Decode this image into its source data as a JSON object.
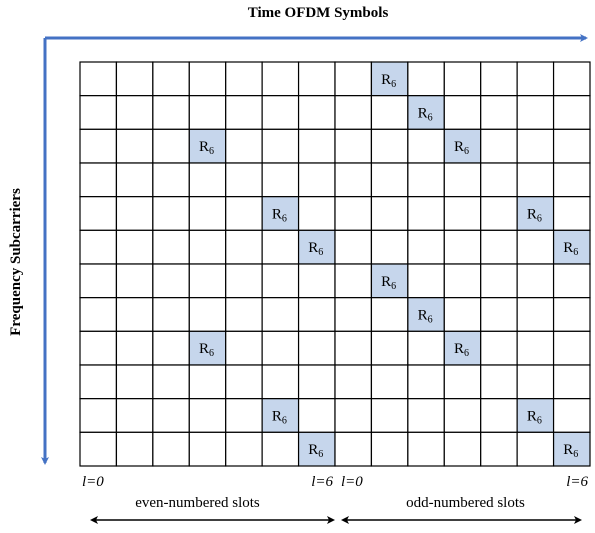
{
  "header": {
    "time_axis": "Time OFDM Symbols",
    "frequency_axis": "Frequency Subcarriers"
  },
  "grid": {
    "rows": [
      [
        null,
        null,
        null,
        null,
        null,
        null,
        null,
        null,
        {
          "main": "R",
          "sub": "6"
        },
        null,
        null,
        null,
        null,
        null
      ],
      [
        null,
        null,
        null,
        null,
        null,
        null,
        null,
        null,
        null,
        {
          "main": "R",
          "sub": "6"
        },
        null,
        null,
        null,
        null
      ],
      [
        null,
        null,
        null,
        {
          "main": "R",
          "sub": "6"
        },
        null,
        null,
        null,
        null,
        null,
        null,
        {
          "main": "R",
          "sub": "6"
        },
        null,
        null,
        null
      ],
      [
        null,
        null,
        null,
        null,
        null,
        null,
        null,
        null,
        null,
        null,
        null,
        null,
        null,
        null
      ],
      [
        null,
        null,
        null,
        null,
        null,
        {
          "main": "R",
          "sub": "6"
        },
        null,
        null,
        null,
        null,
        null,
        null,
        {
          "main": "R",
          "sub": "6"
        },
        null
      ],
      [
        null,
        null,
        null,
        null,
        null,
        null,
        {
          "main": "R",
          "sub": "6"
        },
        null,
        null,
        null,
        null,
        null,
        null,
        {
          "main": "R",
          "sub": "6"
        }
      ],
      [
        null,
        null,
        null,
        null,
        null,
        null,
        null,
        null,
        {
          "main": "R",
          "sub": "6"
        },
        null,
        null,
        null,
        null,
        null
      ],
      [
        null,
        null,
        null,
        null,
        null,
        null,
        null,
        null,
        null,
        {
          "main": "R",
          "sub": "6"
        },
        null,
        null,
        null,
        null
      ],
      [
        null,
        null,
        null,
        {
          "main": "R",
          "sub": "6"
        },
        null,
        null,
        null,
        null,
        null,
        null,
        {
          "main": "R",
          "sub": "6"
        },
        null,
        null,
        null
      ],
      [
        null,
        null,
        null,
        null,
        null,
        null,
        null,
        null,
        null,
        null,
        null,
        null,
        null,
        null
      ],
      [
        null,
        null,
        null,
        null,
        null,
        {
          "main": "R",
          "sub": "6"
        },
        null,
        null,
        null,
        null,
        null,
        null,
        {
          "main": "R",
          "sub": "6"
        },
        null
      ],
      [
        null,
        null,
        null,
        null,
        null,
        null,
        {
          "main": "R",
          "sub": "6"
        },
        null,
        null,
        null,
        null,
        null,
        null,
        {
          "main": "R",
          "sub": "6"
        }
      ]
    ]
  },
  "slots": [
    {
      "start": "l=0",
      "end": "l=6",
      "caption": "even-numbered slots"
    },
    {
      "start": "l=0",
      "end": "l=6",
      "caption": "odd-numbered slots"
    }
  ]
}
